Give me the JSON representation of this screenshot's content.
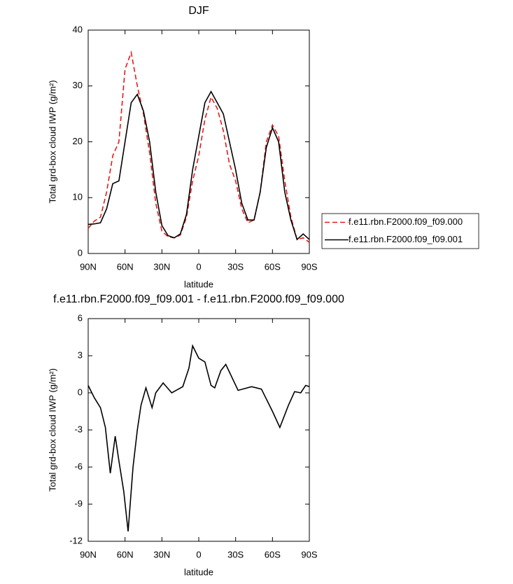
{
  "chart_data": [
    {
      "type": "line",
      "title": "DJF",
      "x_label": "latitude",
      "y_label": "Total grd-box cloud IWP (g/m²)",
      "x": [
        90,
        85,
        80,
        75,
        70,
        65,
        60,
        55,
        50,
        45,
        40,
        35,
        30,
        25,
        20,
        15,
        10,
        5,
        0,
        -5,
        -10,
        -15,
        -20,
        -25,
        -30,
        -35,
        -40,
        -45,
        -50,
        -55,
        -60,
        -65,
        -70,
        -75,
        -80,
        -85,
        -90
      ],
      "series": [
        {
          "name": "f.e11.rbn.F2000.f09_f09.000",
          "color": "#e31a1c",
          "style": "dashed",
          "values": [
            4.5,
            5.8,
            6.5,
            11,
            17.5,
            20,
            33,
            36,
            30,
            25,
            18,
            9,
            4,
            3,
            2.8,
            3.3,
            6.5,
            13,
            17.5,
            24,
            28,
            26,
            22,
            16,
            13,
            8,
            5.5,
            6,
            11,
            20,
            23,
            21,
            13,
            6.5,
            2.5,
            2.8,
            2
          ]
        },
        {
          "name": "f.e11.rbn.F2000.f09_f09.001",
          "color": "#000000",
          "style": "solid",
          "values": [
            5.2,
            5.3,
            5.5,
            8,
            12.5,
            13,
            20,
            27,
            28.5,
            25.5,
            20,
            11,
            5,
            3.2,
            2.8,
            3.5,
            7,
            15,
            21,
            27,
            29,
            27,
            25,
            20,
            15,
            9,
            6,
            6,
            11,
            19,
            22.5,
            20,
            11,
            6,
            2.5,
            3.5,
            2.5
          ]
        }
      ],
      "xlim": [
        90,
        -90
      ],
      "xticks": [
        {
          "value": 90,
          "label": "90N"
        },
        {
          "value": 60,
          "label": "60N"
        },
        {
          "value": 30,
          "label": "30N"
        },
        0,
        {
          "value": -30,
          "label": "30S"
        },
        {
          "value": -60,
          "label": "60S"
        },
        {
          "value": -90,
          "label": "90S"
        }
      ],
      "ylim": [
        0,
        40
      ],
      "yticks": [
        0,
        10,
        20,
        30,
        40
      ],
      "legend": "right",
      "grid": false
    },
    {
      "type": "line",
      "title": "f.e11.rbn.F2000.f09_f09.001 - f.e11.rbn.F2000.f09_f09.000",
      "x_label": "latitude",
      "y_label": "Total grd-box cloud IWP (g/m²)",
      "x": [
        90,
        85,
        80,
        76,
        72,
        68,
        65,
        61,
        57.5,
        53.5,
        50,
        47,
        43,
        38,
        35,
        29,
        22,
        13,
        8,
        5,
        0,
        -5,
        -10,
        -13,
        -18,
        -22,
        -32,
        -43,
        -51,
        -60,
        -66,
        -73,
        -78,
        -83,
        -87,
        -90
      ],
      "values": [
        0.6,
        -0.4,
        -1.2,
        -2.8,
        -6.5,
        -3.5,
        -5.5,
        -8,
        -11.2,
        -6,
        -3,
        -1,
        0.4,
        -1.2,
        0,
        0.8,
        0,
        0.5,
        2,
        3.8,
        2.8,
        2.5,
        0.6,
        0.4,
        1.8,
        2.3,
        0.2,
        0.5,
        0.3,
        -1.5,
        -2.8,
        -1,
        0.1,
        0,
        0.6,
        0.5
      ],
      "color": "#000000",
      "style": "solid",
      "xlim": [
        90,
        -90
      ],
      "xticks": [
        {
          "value": 90,
          "label": "90N"
        },
        {
          "value": 60,
          "label": "60N"
        },
        {
          "value": 30,
          "label": "30N"
        },
        0,
        {
          "value": -30,
          "label": "30S"
        },
        {
          "value": -60,
          "label": "60S"
        },
        {
          "value": -90,
          "label": "90S"
        }
      ],
      "ylim": [
        -12,
        6
      ],
      "yticks": [
        -12,
        -9,
        -6,
        -3,
        0,
        3,
        6
      ],
      "grid": false
    }
  ]
}
